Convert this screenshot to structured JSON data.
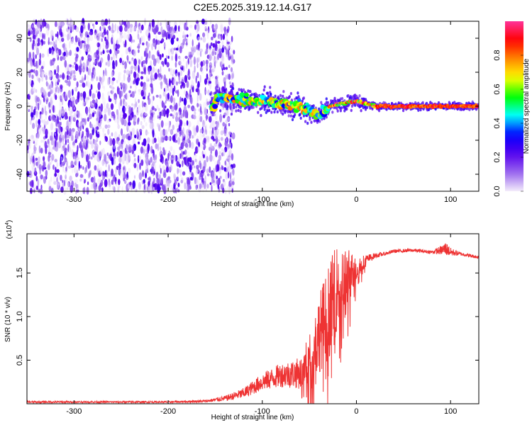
{
  "chart_data": [
    {
      "type": "heatmap",
      "title": "C2E5.2025.319.12.14.G17",
      "xlabel": "Height of straight line (km)",
      "ylabel": "Frequency (Hz)",
      "xlim": [
        -350,
        130
      ],
      "ylim": [
        -50,
        50
      ],
      "x_ticks": [
        -300,
        -200,
        -100,
        0,
        100
      ],
      "y_ticks": [
        -40,
        -20,
        0,
        20,
        40
      ],
      "colorbar": {
        "label": "Normalized spectral amplitude",
        "range": [
          0.0,
          1.0
        ],
        "ticks": [
          "0.0",
          "0.2",
          "0.4",
          "0.6",
          "0.8"
        ],
        "colors": [
          "#f4ecfb",
          "#9966ee",
          "#5500ee",
          "#0000ff",
          "#00ffff",
          "#00ff00",
          "#ffff00",
          "#ff8800",
          "#ff0000",
          "#ff3399"
        ]
      },
      "regions": [
        {
          "name": "noise",
          "x_range": [
            -350,
            -130
          ],
          "freq_range": [
            -50,
            50
          ],
          "amplitude_range": [
            0.0,
            0.25
          ]
        },
        {
          "name": "signal-track",
          "x_range": [
            -155,
            130
          ],
          "center_freq_at": [
            [
              -150,
              5
            ],
            [
              -100,
              3
            ],
            [
              -60,
              0
            ],
            [
              -40,
              -6
            ],
            [
              -30,
              0
            ],
            [
              0,
              3
            ],
            [
              20,
              0
            ],
            [
              130,
              0
            ]
          ],
          "amplitude_range": [
            0.3,
            1.0
          ]
        }
      ]
    },
    {
      "type": "line",
      "xlabel": "Height of straight line (km)",
      "ylabel": "SNR (10 * v/v)",
      "y_multiplier": "(x10",
      "y_multiplier_exp": "4",
      "y_multiplier_close": ")",
      "xlim": [
        -350,
        130
      ],
      "ylim": [
        0,
        1.95
      ],
      "x_ticks": [
        -300,
        -200,
        -100,
        0,
        100
      ],
      "y_ticks": [
        0.5,
        1.0,
        1.5
      ],
      "series": [
        {
          "name": "SNR",
          "color": "#ee3333",
          "envelope": {
            "x": [
              -350,
              -300,
              -200,
              -160,
              -140,
              -120,
              -100,
              -80,
              -60,
              -50,
              -40,
              -30,
              -20,
              -10,
              0,
              10,
              20,
              30,
              40,
              60,
              80,
              90,
              95,
              100,
              110,
              130
            ],
            "y": [
              0.02,
              0.02,
              0.02,
              0.03,
              0.06,
              0.12,
              0.25,
              0.33,
              0.35,
              0.5,
              0.8,
              1.05,
              1.35,
              1.45,
              1.55,
              1.65,
              1.7,
              1.72,
              1.75,
              1.76,
              1.74,
              1.76,
              1.78,
              1.74,
              1.72,
              1.68
            ],
            "noise_amplitude": [
              0.01,
              0.01,
              0.01,
              0.015,
              0.03,
              0.06,
              0.1,
              0.14,
              0.18,
              0.3,
              0.45,
              0.55,
              0.5,
              0.35,
              0.15,
              0.06,
              0.03,
              0.02,
              0.02,
              0.02,
              0.02,
              0.05,
              0.08,
              0.05,
              0.02,
              0.02
            ]
          }
        }
      ]
    }
  ]
}
